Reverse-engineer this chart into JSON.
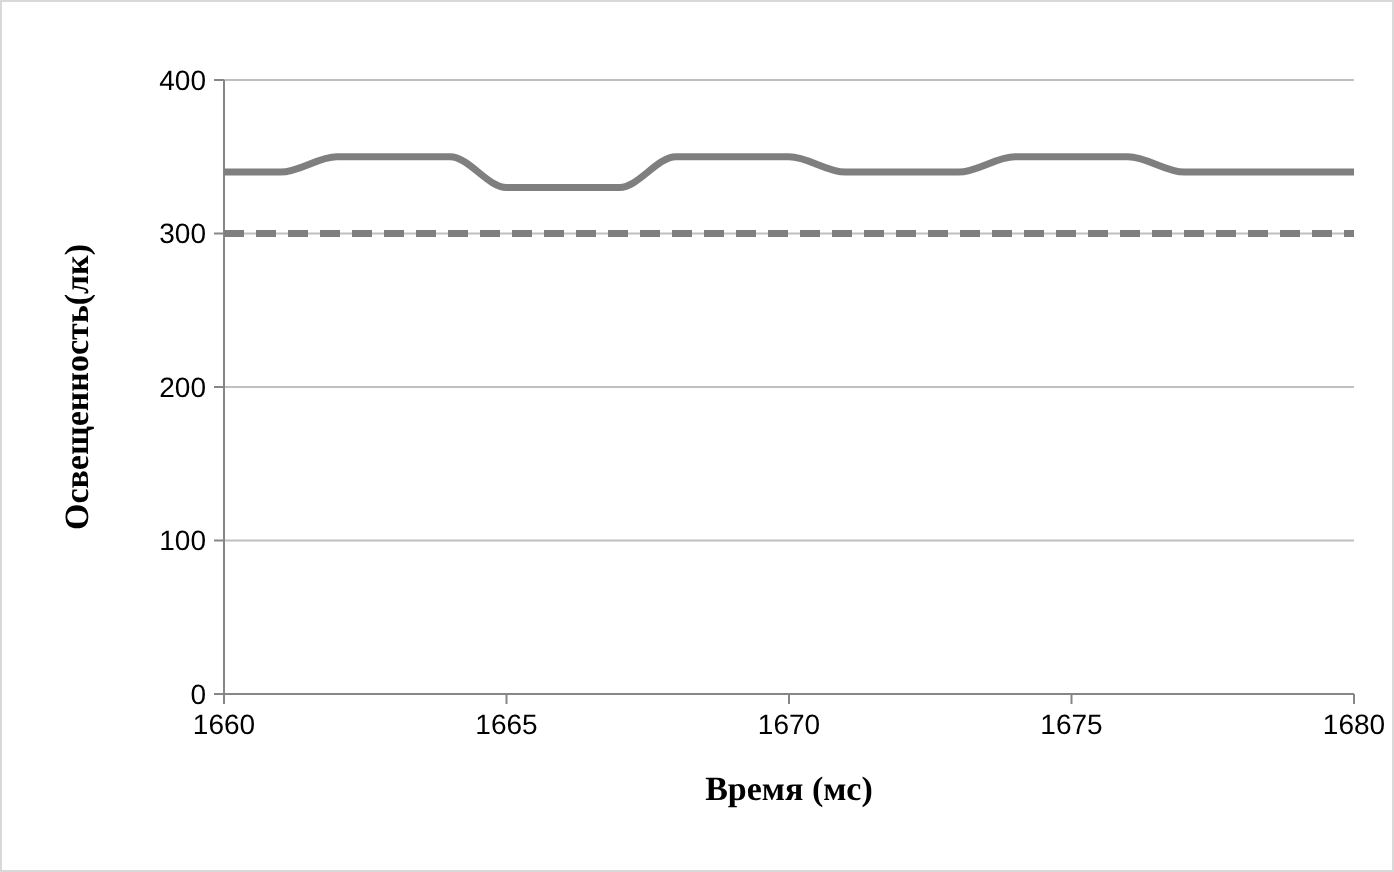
{
  "chart_data": {
    "type": "line",
    "xlabel": "Время (мс)",
    "ylabel": "Освещенность(лк)",
    "x": [
      1660,
      1661,
      1662,
      1663,
      1664,
      1665,
      1666,
      1667,
      1668,
      1669,
      1670,
      1671,
      1672,
      1673,
      1674,
      1675,
      1676,
      1677,
      1678,
      1679,
      1680
    ],
    "series": [
      {
        "color": "#7f7f7f",
        "values": [
          340,
          340,
          350,
          350,
          350,
          330,
          330,
          330,
          350,
          350,
          350,
          340,
          340,
          340,
          350,
          350,
          350,
          340,
          340,
          340,
          340
        ]
      }
    ],
    "ref_lines": [
      {
        "axis": "y",
        "value": 300,
        "color": "#7f7f7f",
        "line_style": "dashed"
      }
    ],
    "xlim": [
      1660,
      1680
    ],
    "xticks": [
      1660,
      1665,
      1670,
      1675,
      1680
    ],
    "ylim": [
      0,
      400
    ],
    "yticks": [
      0,
      100,
      200,
      300,
      400
    ],
    "grid": "y",
    "marker": "none",
    "line_style": "solid"
  }
}
